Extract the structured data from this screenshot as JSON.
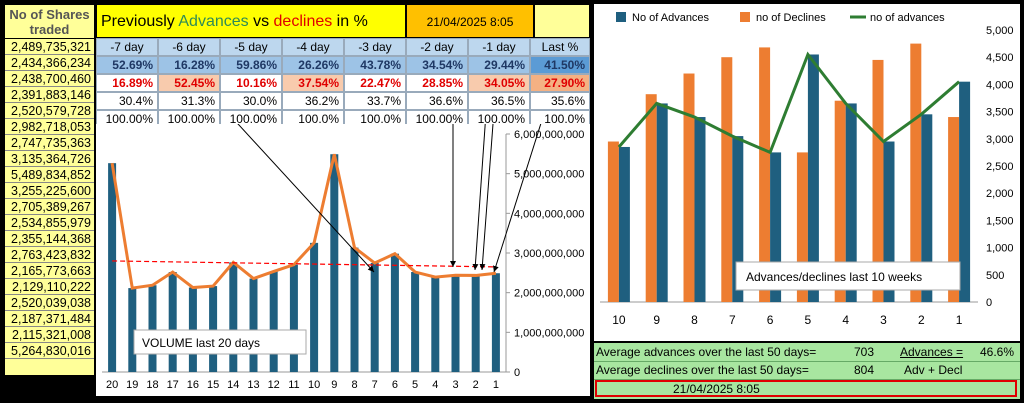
{
  "left_column": {
    "header": "No of Shares traded",
    "values": [
      "2,489,735,321",
      "2,434,366,234",
      "2,438,700,460",
      "2,391,883,146",
      "2,520,579,728",
      "2,982,718,053",
      "2,747,735,363",
      "3,135,364,726",
      "5,489,834,852",
      "3,255,225,600",
      "2,705,389,267",
      "2,534,855,979",
      "2,355,144,368",
      "2,763,423,832",
      "2,165,773,663",
      "2,129,110,222",
      "2,520,039,038",
      "2,187,371,484",
      "2,115,321,008",
      "5,264,830,016"
    ]
  },
  "table": {
    "title_prefix": "Previously ",
    "title_adv": "Advances",
    "title_vs": " vs ",
    "title_dec": "declines",
    "title_suffix": " in %",
    "timestamp": "21/04/2025 8:05",
    "day_headers": [
      "-7 day",
      "-6 day",
      "-5 day",
      "-4 day",
      "-3 day",
      "-2 day",
      "-1 day",
      "Last %"
    ],
    "advances_pct": [
      "52.69%",
      "16.28%",
      "59.86%",
      "26.26%",
      "43.78%",
      "34.54%",
      "29.44%",
      "41.50%"
    ],
    "declines_pct": [
      "16.89%",
      "52.45%",
      "10.16%",
      "37.54%",
      "22.47%",
      "28.85%",
      "34.05%",
      "27.90%"
    ],
    "other_pct": [
      "30.4%",
      "31.3%",
      "30.0%",
      "36.2%",
      "33.7%",
      "36.6%",
      "36.5%",
      "35.6%"
    ],
    "total_pct": [
      "100.00%",
      "100.00%",
      "100.00%",
      "100.0%",
      "100.0%",
      "100.00%",
      "100.00%",
      "100.0%"
    ],
    "colors": {
      "header_yellow": "#ffff00",
      "header_blue": "#bdd7ee",
      "adv_blue": "#5b9bd5",
      "dec_salmon": "#f8cbad",
      "dec_text": "#e00000",
      "adv_title": "#2e8b57"
    }
  },
  "chart_data": [
    {
      "type": "bar",
      "label": "VOLUME last 20 days",
      "categories": [
        "20",
        "19",
        "18",
        "17",
        "16",
        "15",
        "14",
        "13",
        "12",
        "11",
        "10",
        "9",
        "8",
        "7",
        "6",
        "5",
        "4",
        "3",
        "2",
        "1"
      ],
      "series": [
        {
          "values": [
            5264830016,
            2115321008,
            2187371484,
            2520039038,
            2129110222,
            2165773663,
            2763423832,
            2355144368,
            2534855979,
            2705389267,
            3255225600,
            5489834852,
            3135364726,
            2747735363,
            2982718053,
            2520579728,
            2391883146,
            2438700460,
            2434366234,
            2489735321
          ]
        }
      ],
      "trend": {
        "start": 2800000000,
        "end": 2650000000
      },
      "ylim": [
        0,
        6000000000
      ],
      "yticks": [
        "0",
        "1,000,000,000",
        "2,000,000,000",
        "3,000,000,000",
        "4,000,000,000",
        "5,000,000,000",
        "6,000,000,000"
      ],
      "colors": {
        "bar": "#1f5f7f",
        "line": "#ed7d31",
        "trend": "#ff0000"
      }
    },
    {
      "type": "bar",
      "label": "Advances/declines  last 10 weeks",
      "categories": [
        "10",
        "9",
        "8",
        "7",
        "6",
        "5",
        "4",
        "3",
        "2",
        "1"
      ],
      "series": [
        {
          "name": "No of Advances",
          "values": [
            2850,
            3650,
            3400,
            3050,
            2750,
            4550,
            3650,
            2950,
            3450,
            4050
          ],
          "color": "#1f5f7f"
        },
        {
          "name": "no of Declines",
          "values": [
            2950,
            3820,
            4200,
            4500,
            4680,
            2750,
            3700,
            4450,
            4750,
            3400
          ],
          "color": "#ed7d31"
        },
        {
          "name": "no of advances",
          "values": [
            2850,
            3650,
            3400,
            3050,
            2750,
            4550,
            3650,
            2950,
            3450,
            4050
          ],
          "color": "#2e7d32"
        }
      ],
      "ylim": [
        0,
        5000
      ],
      "yticks": [
        "0",
        "500",
        "1,000",
        "1,500",
        "2,000",
        "2,500",
        "3,000",
        "3,500",
        "4,000",
        "4,500",
        "5,000"
      ]
    }
  ],
  "stats": {
    "avg_adv_label": "Average advances over the last 50 days=",
    "avg_adv_value": "703",
    "avg_dec_label": "Average declines over the last 50 days=",
    "avg_dec_value": "804",
    "ratio_top": "Advances =",
    "ratio_bottom": "Adv + Decl",
    "ratio_value": "46.6%",
    "timestamp": "21/04/2025 8:05"
  }
}
